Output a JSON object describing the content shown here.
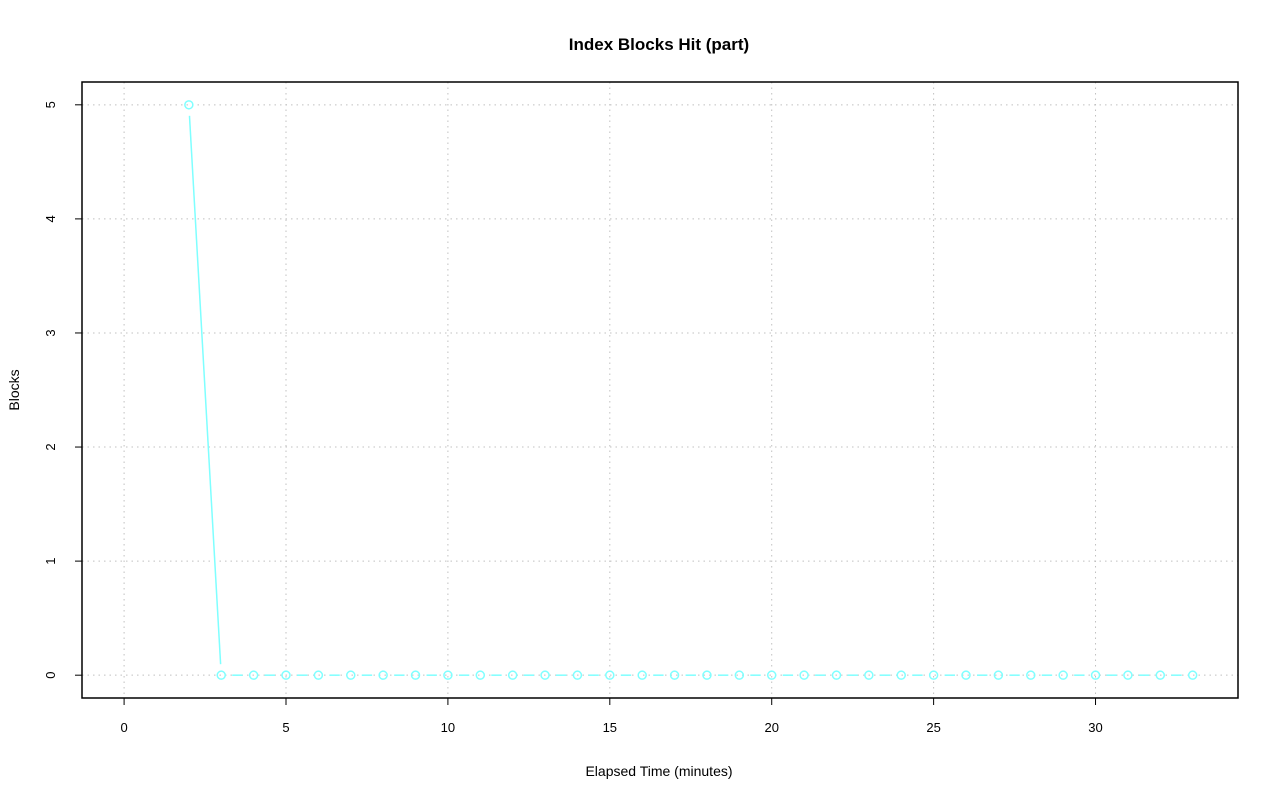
{
  "chart_data": {
    "type": "line",
    "title": "Index Blocks Hit (part)",
    "xlabel": "Elapsed Time (minutes)",
    "ylabel": "Blocks",
    "xlim": [
      -1.3,
      34.4
    ],
    "ylim": [
      -0.2,
      5.2
    ],
    "x_ticks": [
      0,
      5,
      10,
      15,
      20,
      25,
      30
    ],
    "y_ticks": [
      0,
      1,
      2,
      3,
      4,
      5
    ],
    "grid": true,
    "legend": "none",
    "series": [
      {
        "color": "#7fffff",
        "marker": "circle",
        "x": [
          2,
          3,
          4,
          5,
          6,
          7,
          8,
          9,
          10,
          11,
          12,
          13,
          14,
          15,
          16,
          17,
          18,
          19,
          20,
          21,
          22,
          23,
          24,
          25,
          26,
          27,
          28,
          29,
          30,
          31,
          32,
          33
        ],
        "y": [
          5,
          0,
          0,
          0,
          0,
          0,
          0,
          0,
          0,
          0,
          0,
          0,
          0,
          0,
          0,
          0,
          0,
          0,
          0,
          0,
          0,
          0,
          0,
          0,
          0,
          0,
          0,
          0,
          0,
          0,
          0,
          0
        ]
      }
    ]
  }
}
